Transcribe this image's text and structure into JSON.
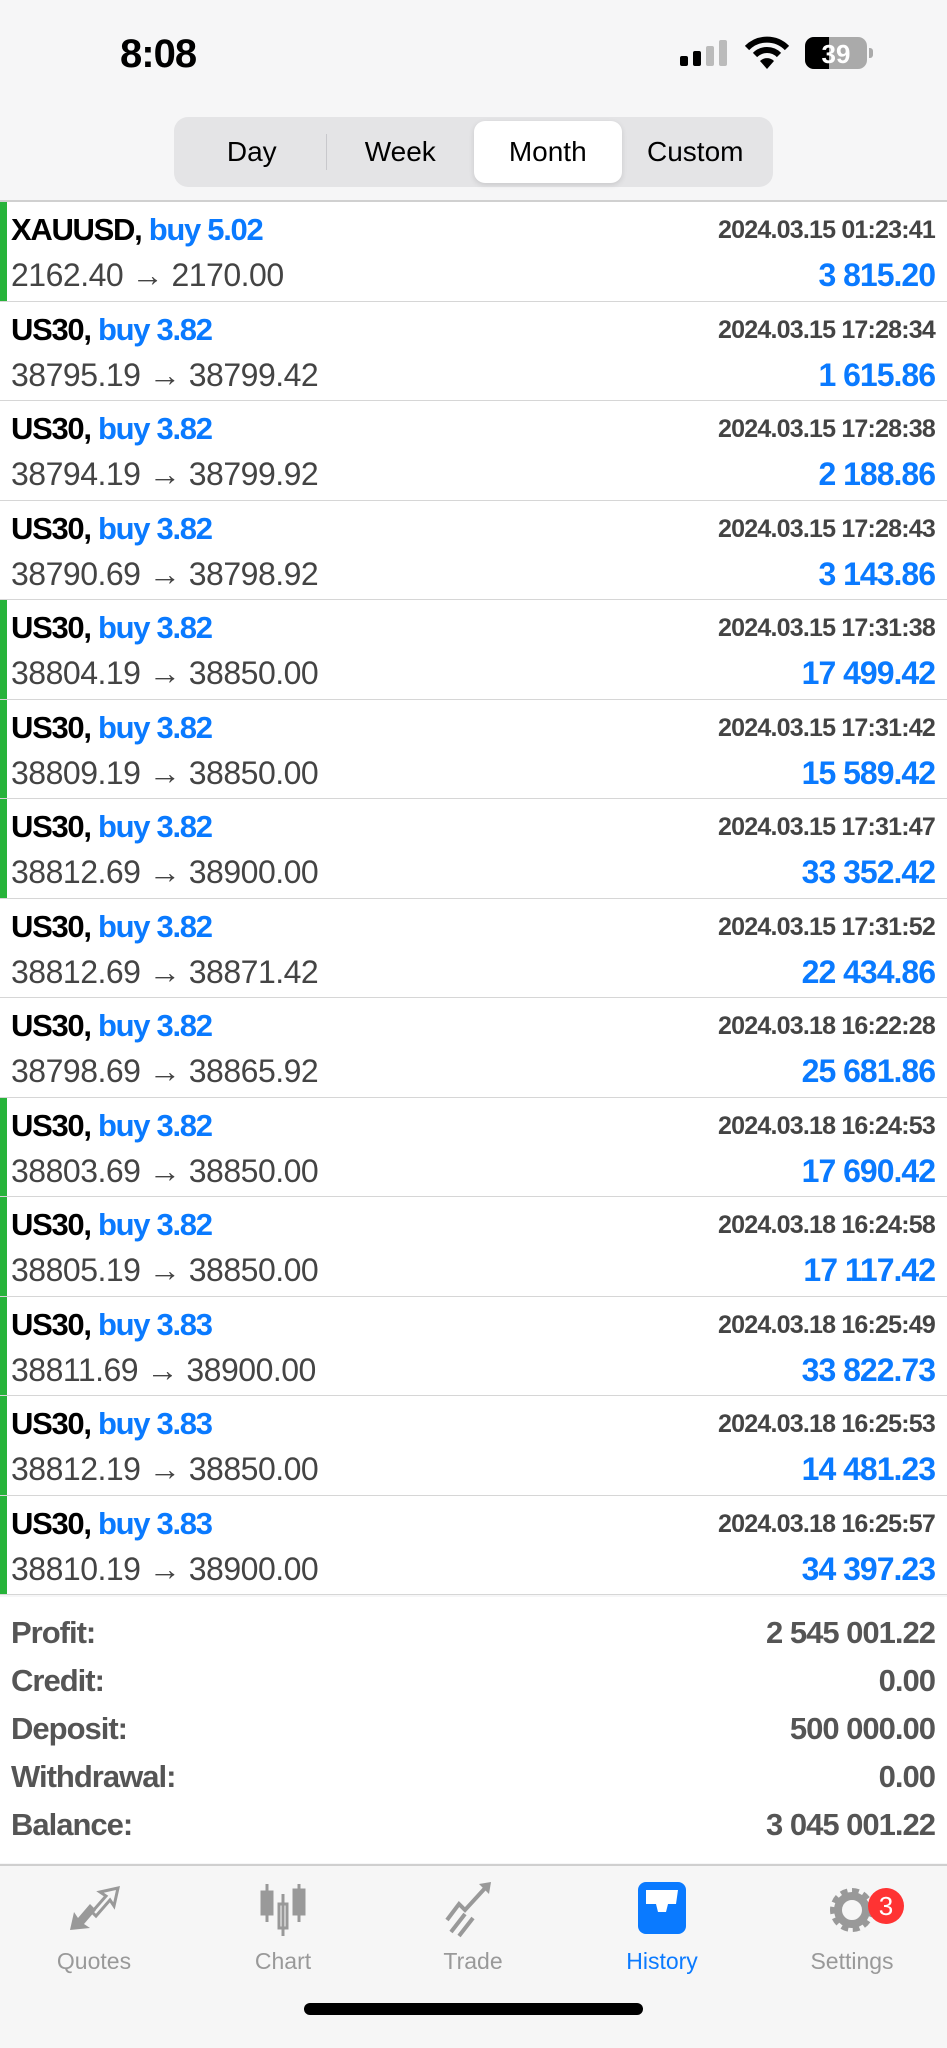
{
  "status": {
    "time": "8:08",
    "battery": "39",
    "battery_level": 0.39
  },
  "segments": {
    "items": [
      "Day",
      "Week",
      "Month",
      "Custom"
    ],
    "selected": "Month"
  },
  "trades": [
    {
      "symbol": "XAUUSD,",
      "side": "buy 5.02",
      "date": "2024.03.15 01:23:41",
      "prices": "2162.40 → 2170.00",
      "profit": "3 815.20",
      "bar": true
    },
    {
      "symbol": "US30,",
      "side": "buy 3.82",
      "date": "2024.03.15 17:28:34",
      "prices": "38795.19 → 38799.42",
      "profit": "1 615.86",
      "bar": false
    },
    {
      "symbol": "US30,",
      "side": "buy 3.82",
      "date": "2024.03.15 17:28:38",
      "prices": "38794.19 → 38799.92",
      "profit": "2 188.86",
      "bar": false
    },
    {
      "symbol": "US30,",
      "side": "buy 3.82",
      "date": "2024.03.15 17:28:43",
      "prices": "38790.69 → 38798.92",
      "profit": "3 143.86",
      "bar": false
    },
    {
      "symbol": "US30,",
      "side": "buy 3.82",
      "date": "2024.03.15 17:31:38",
      "prices": "38804.19 → 38850.00",
      "profit": "17 499.42",
      "bar": true
    },
    {
      "symbol": "US30,",
      "side": "buy 3.82",
      "date": "2024.03.15 17:31:42",
      "prices": "38809.19 → 38850.00",
      "profit": "15 589.42",
      "bar": true
    },
    {
      "symbol": "US30,",
      "side": "buy 3.82",
      "date": "2024.03.15 17:31:47",
      "prices": "38812.69 → 38900.00",
      "profit": "33 352.42",
      "bar": true
    },
    {
      "symbol": "US30,",
      "side": "buy 3.82",
      "date": "2024.03.15 17:31:52",
      "prices": "38812.69 → 38871.42",
      "profit": "22 434.86",
      "bar": false
    },
    {
      "symbol": "US30,",
      "side": "buy 3.82",
      "date": "2024.03.18 16:22:28",
      "prices": "38798.69 → 38865.92",
      "profit": "25 681.86",
      "bar": false
    },
    {
      "symbol": "US30,",
      "side": "buy 3.82",
      "date": "2024.03.18 16:24:53",
      "prices": "38803.69 → 38850.00",
      "profit": "17 690.42",
      "bar": true
    },
    {
      "symbol": "US30,",
      "side": "buy 3.82",
      "date": "2024.03.18 16:24:58",
      "prices": "38805.19 → 38850.00",
      "profit": "17 117.42",
      "bar": true
    },
    {
      "symbol": "US30,",
      "side": "buy 3.83",
      "date": "2024.03.18 16:25:49",
      "prices": "38811.69 → 38900.00",
      "profit": "33 822.73",
      "bar": true
    },
    {
      "symbol": "US30,",
      "side": "buy 3.83",
      "date": "2024.03.18 16:25:53",
      "prices": "38812.19 → 38850.00",
      "profit": "14 481.23",
      "bar": true
    },
    {
      "symbol": "US30,",
      "side": "buy 3.83",
      "date": "2024.03.18 16:25:57",
      "prices": "38810.19 → 38900.00",
      "profit": "34 397.23",
      "bar": true
    }
  ],
  "summary": [
    {
      "label": "Profit:",
      "value": "2 545 001.22"
    },
    {
      "label": "Credit:",
      "value": "0.00"
    },
    {
      "label": "Deposit:",
      "value": "500 000.00"
    },
    {
      "label": "Withdrawal:",
      "value": "0.00"
    },
    {
      "label": "Balance:",
      "value": "3 045 001.22"
    }
  ],
  "tabbar": {
    "items": [
      {
        "label": "Quotes",
        "icon": "quotes-arrows-icon"
      },
      {
        "label": "Chart",
        "icon": "candlestick-icon"
      },
      {
        "label": "Trade",
        "icon": "trade-trend-icon"
      },
      {
        "label": "History",
        "icon": "inbox-tray-icon"
      },
      {
        "label": "Settings",
        "icon": "gear-icon"
      }
    ],
    "active": "History",
    "settings_badge": "3"
  },
  "colors": {
    "accent": "#0a7aff",
    "bar": "#27b33a",
    "badge": "#ff3333"
  }
}
